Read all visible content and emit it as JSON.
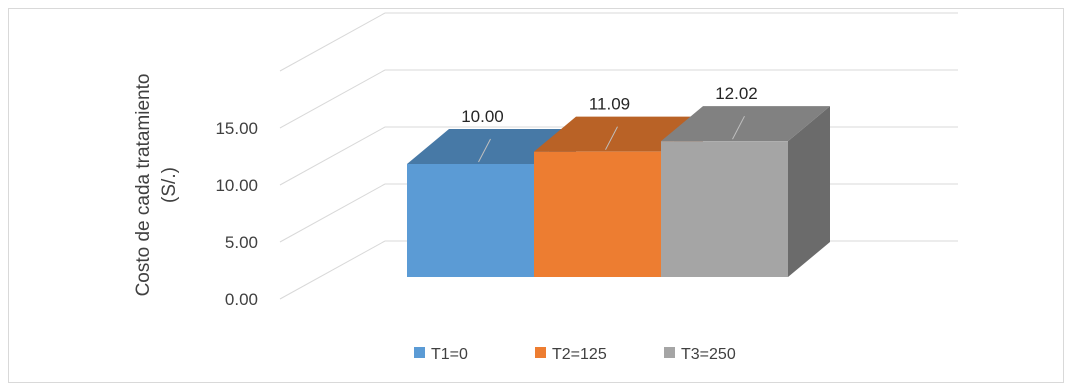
{
  "chart_data": {
    "type": "bar",
    "style": "3d-column",
    "categories": [
      "T1=0",
      "T2=125",
      "T3=250"
    ],
    "values": [
      10.0,
      11.09,
      12.02
    ],
    "value_labels": [
      "10.00",
      "11.09",
      "12.02"
    ],
    "series_colors": [
      "#5b9bd5",
      "#ed7d31",
      "#a5a5a5"
    ],
    "ylabel_lines": [
      "Costo de cada tratamiento",
      "(S/.)"
    ],
    "ylim": [
      0,
      20
    ],
    "yticks": [
      "0.00",
      "5.00",
      "10.00",
      "15.00"
    ],
    "legend": [
      "T1=0",
      "T2=125",
      "T3=250"
    ],
    "legend_position": "bottom",
    "grid": true
  }
}
